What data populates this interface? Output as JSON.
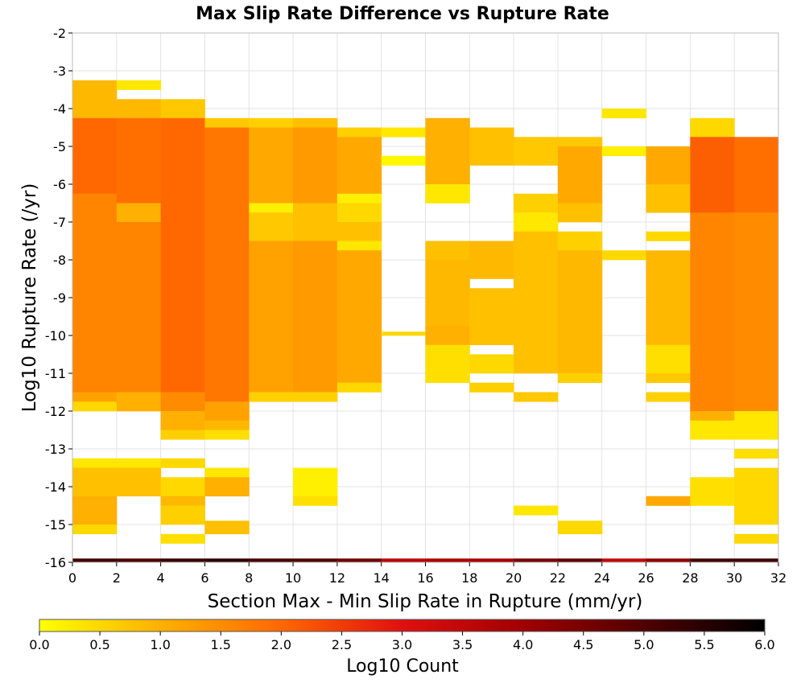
{
  "chart_data": {
    "type": "heatmap",
    "title": "Max Slip Rate Difference vs Rupture Rate",
    "xlabel": "Section Max - Min Slip Rate in Rupture (mm/yr)",
    "ylabel": "Log10 Rupture Rate (/yr)",
    "xlim": [
      0,
      32
    ],
    "ylim": [
      -16,
      -2
    ],
    "x_ticks": [
      "0",
      "2",
      "4",
      "6",
      "8",
      "10",
      "12",
      "14",
      "16",
      "18",
      "20",
      "22",
      "24",
      "26",
      "28",
      "30",
      "32"
    ],
    "y_ticks": [
      "-2",
      "-3",
      "-4",
      "-5",
      "-6",
      "-7",
      "-8",
      "-9",
      "-10",
      "-11",
      "-12",
      "-13",
      "-14",
      "-15",
      "-16"
    ],
    "x_bin_width": 2,
    "y_bin_width": 0.25,
    "grid": true,
    "colorbar": {
      "label": "Log10 Count",
      "range": [
        0,
        6
      ],
      "ticks": [
        "0.0",
        "0.5",
        "1.0",
        "1.5",
        "2.0",
        "2.5",
        "3.0",
        "3.5",
        "4.0",
        "4.5",
        "5.0",
        "5.5",
        "6.0"
      ],
      "stops": [
        {
          "value": 0.0,
          "color": "#ffff00"
        },
        {
          "value": 1.0,
          "color": "#ffb000"
        },
        {
          "value": 2.0,
          "color": "#ff6800"
        },
        {
          "value": 3.0,
          "color": "#e01010"
        },
        {
          "value": 4.0,
          "color": "#a00000"
        },
        {
          "value": 5.0,
          "color": "#500000"
        },
        {
          "value": 6.0,
          "color": "#000000"
        }
      ]
    },
    "columns": [
      {
        "x": 0,
        "runs": [
          [
            -3.25,
            -4.25,
            0.9
          ],
          [
            -4.25,
            -6.25,
            2.0
          ],
          [
            -6.25,
            -11.5,
            1.6
          ],
          [
            -11.5,
            -11.75,
            1.2
          ],
          [
            -11.75,
            -12.0,
            0.5
          ],
          [
            -13.25,
            -13.5,
            0.3
          ],
          [
            -13.5,
            -14.25,
            0.8
          ],
          [
            -14.25,
            -15.0,
            1.0
          ],
          [
            -15.0,
            -15.25,
            0.5
          ],
          [
            -15.9,
            -16.0,
            5.2
          ]
        ]
      },
      {
        "x": 2,
        "runs": [
          [
            -3.25,
            -3.5,
            0.3
          ],
          [
            -3.75,
            -4.25,
            0.9
          ],
          [
            -4.25,
            -6.5,
            1.9
          ],
          [
            -6.5,
            -7.0,
            1.0
          ],
          [
            -7.0,
            -11.5,
            1.6
          ],
          [
            -11.5,
            -12.0,
            1.0
          ],
          [
            -13.25,
            -13.5,
            0.3
          ],
          [
            -13.5,
            -14.25,
            0.8
          ],
          [
            -15.9,
            -16.0,
            5.0
          ]
        ]
      },
      {
        "x": 4,
        "runs": [
          [
            -3.75,
            -4.25,
            0.7
          ],
          [
            -4.25,
            -11.5,
            2.0
          ],
          [
            -11.5,
            -12.0,
            1.5
          ],
          [
            -12.0,
            -12.5,
            1.0
          ],
          [
            -12.5,
            -12.75,
            0.6
          ],
          [
            -13.25,
            -13.5,
            0.5
          ],
          [
            -13.75,
            -14.25,
            0.5
          ],
          [
            -14.25,
            -14.5,
            0.9
          ],
          [
            -14.5,
            -15.0,
            0.6
          ],
          [
            -15.25,
            -15.5,
            0.4
          ],
          [
            -15.9,
            -16.0,
            5.3
          ]
        ]
      },
      {
        "x": 6,
        "runs": [
          [
            -4.25,
            -4.5,
            0.7
          ],
          [
            -4.5,
            -11.75,
            1.8
          ],
          [
            -11.75,
            -12.25,
            1.2
          ],
          [
            -12.25,
            -12.5,
            0.9
          ],
          [
            -12.5,
            -12.75,
            0.4
          ],
          [
            -13.5,
            -13.75,
            0.3
          ],
          [
            -13.75,
            -14.25,
            1.0
          ],
          [
            -14.9,
            -15.25,
            0.8
          ],
          [
            -15.9,
            -16.0,
            5.4
          ]
        ]
      },
      {
        "x": 8,
        "runs": [
          [
            -4.25,
            -4.5,
            0.6
          ],
          [
            -4.5,
            -6.5,
            1.1
          ],
          [
            -6.5,
            -6.75,
            0.2
          ],
          [
            -6.75,
            -7.5,
            0.7
          ],
          [
            -7.5,
            -11.5,
            1.2
          ],
          [
            -11.5,
            -11.75,
            0.6
          ],
          [
            -15.9,
            -16.0,
            5.1
          ]
        ]
      },
      {
        "x": 10,
        "runs": [
          [
            -4.25,
            -4.5,
            0.8
          ],
          [
            -4.5,
            -6.5,
            1.3
          ],
          [
            -6.5,
            -7.5,
            0.8
          ],
          [
            -7.5,
            -11.5,
            1.3
          ],
          [
            -11.5,
            -11.75,
            0.6
          ],
          [
            -13.5,
            -14.25,
            0.2
          ],
          [
            -14.25,
            -14.5,
            0.4
          ],
          [
            -15.9,
            -16.0,
            5.0
          ]
        ]
      },
      {
        "x": 12,
        "runs": [
          [
            -4.5,
            -4.75,
            0.6
          ],
          [
            -4.75,
            -6.25,
            1.1
          ],
          [
            -6.25,
            -6.5,
            0.2
          ],
          [
            -6.5,
            -7.0,
            0.5
          ],
          [
            -7.0,
            -7.5,
            0.8
          ],
          [
            -7.5,
            -7.75,
            0.3
          ],
          [
            -7.75,
            -11.25,
            1.1
          ],
          [
            -11.25,
            -11.5,
            0.5
          ],
          [
            -15.9,
            -16.0,
            4.6
          ]
        ]
      },
      {
        "x": 14,
        "runs": [
          [
            -4.5,
            -4.75,
            0.3
          ],
          [
            -5.25,
            -5.5,
            0.1
          ],
          [
            -9.9,
            -10.0,
            0.5
          ],
          [
            -15.9,
            -16.0,
            3.6
          ]
        ]
      },
      {
        "x": 16,
        "runs": [
          [
            -4.25,
            -6.0,
            1.0
          ],
          [
            -6.0,
            -6.5,
            0.3
          ],
          [
            -7.5,
            -8.0,
            0.8
          ],
          [
            -8.0,
            -9.75,
            0.9
          ],
          [
            -9.75,
            -10.25,
            1.0
          ],
          [
            -10.25,
            -11.25,
            0.4
          ],
          [
            -15.9,
            -16.0,
            3.8
          ]
        ]
      },
      {
        "x": 18,
        "runs": [
          [
            -4.5,
            -5.5,
            0.8
          ],
          [
            -7.5,
            -8.5,
            0.9
          ],
          [
            -8.75,
            -10.25,
            0.8
          ],
          [
            -10.5,
            -11.0,
            0.5
          ],
          [
            -11.25,
            -11.5,
            0.6
          ],
          [
            -15.9,
            -16.0,
            3.9
          ]
        ]
      },
      {
        "x": 20,
        "runs": [
          [
            -4.75,
            -5.5,
            0.7
          ],
          [
            -6.25,
            -6.75,
            0.6
          ],
          [
            -6.75,
            -7.25,
            0.3
          ],
          [
            -7.25,
            -11.0,
            0.8
          ],
          [
            -11.5,
            -11.75,
            0.7
          ],
          [
            -14.5,
            -14.75,
            0.3
          ],
          [
            -15.9,
            -16.0,
            4.5
          ]
        ]
      },
      {
        "x": 22,
        "runs": [
          [
            -4.75,
            -5.0,
            0.7
          ],
          [
            -5.0,
            -6.5,
            1.1
          ],
          [
            -6.5,
            -7.0,
            0.8
          ],
          [
            -7.25,
            -7.75,
            0.6
          ],
          [
            -7.75,
            -11.0,
            0.9
          ],
          [
            -11.0,
            -11.25,
            0.6
          ],
          [
            -14.9,
            -15.25,
            0.5
          ],
          [
            -15.9,
            -16.0,
            4.8
          ]
        ]
      },
      {
        "x": 24,
        "runs": [
          [
            -4.0,
            -4.25,
            0.3
          ],
          [
            -5.0,
            -5.25,
            0.2
          ],
          [
            -7.75,
            -8.0,
            0.5
          ],
          [
            -15.9,
            -16.0,
            3.5
          ]
        ]
      },
      {
        "x": 26,
        "runs": [
          [
            -5.0,
            -6.0,
            1.1
          ],
          [
            -6.0,
            -6.75,
            0.8
          ],
          [
            -7.25,
            -7.5,
            0.5
          ],
          [
            -7.75,
            -10.25,
            0.9
          ],
          [
            -10.25,
            -11.0,
            0.4
          ],
          [
            -11.0,
            -11.25,
            0.7
          ],
          [
            -11.5,
            -11.75,
            0.6
          ],
          [
            -14.25,
            -14.5,
            1.1
          ],
          [
            -15.9,
            -16.0,
            4.2
          ]
        ]
      },
      {
        "x": 28,
        "runs": [
          [
            -4.25,
            -4.75,
            0.5
          ],
          [
            -4.75,
            -6.75,
            2.1
          ],
          [
            -6.75,
            -12.0,
            1.6
          ],
          [
            -12.0,
            -12.25,
            1.0
          ],
          [
            -12.25,
            -12.75,
            0.3
          ],
          [
            -13.75,
            -14.5,
            0.4
          ],
          [
            -15.9,
            -16.0,
            5.2
          ]
        ]
      },
      {
        "x": 30,
        "runs": [
          [
            -4.75,
            -6.75,
            1.9
          ],
          [
            -6.75,
            -12.0,
            1.5
          ],
          [
            -12.0,
            -12.75,
            0.3
          ],
          [
            -13.0,
            -13.25,
            0.4
          ],
          [
            -13.5,
            -15.0,
            0.5
          ],
          [
            -15.25,
            -15.5,
            0.5
          ],
          [
            -15.9,
            -16.0,
            5.2
          ]
        ]
      }
    ]
  }
}
